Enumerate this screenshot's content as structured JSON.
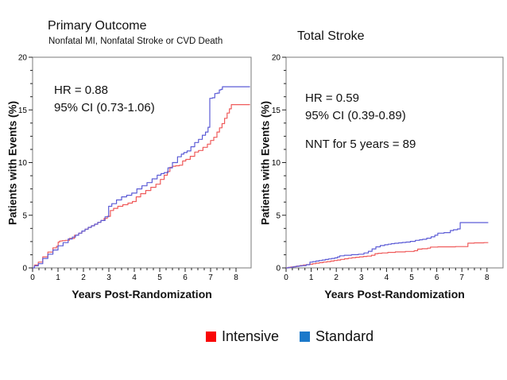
{
  "slide": {
    "background": "#ffffff"
  },
  "legend": {
    "items": [
      {
        "label": "Intensive",
        "color": "#f90606"
      },
      {
        "label": "Standard",
        "color": "#1c79ca"
      }
    ]
  },
  "chart_data": [
    {
      "type": "line",
      "title": "Primary Outcome",
      "subtitle": "Nonfatal MI, Nonfatal Stroke or CVD Death",
      "annotations": {
        "hr": "HR = 0.88",
        "ci": "95% CI (0.73-1.06)"
      },
      "xlabel": "Years Post-Randomization",
      "ylabel": "Patients with Events (%)",
      "xlim": [
        0,
        8
      ],
      "ylim": [
        0,
        20
      ],
      "xticks": [
        0,
        1,
        2,
        3,
        4,
        5,
        6,
        7,
        8
      ],
      "yticks": [
        0,
        5,
        10,
        15,
        20
      ],
      "grid": false,
      "legend_position": "bottom",
      "series": [
        {
          "name": "Intensive",
          "color": "#ef5a5a",
          "points": [
            [
              0,
              0
            ],
            [
              0.3,
              0.55
            ],
            [
              0.5,
              1.05
            ],
            [
              0.7,
              1.5
            ],
            [
              0.9,
              1.9
            ],
            [
              0.98,
              2.05
            ],
            [
              1.03,
              2.45
            ],
            [
              1.1,
              2.55
            ],
            [
              1.35,
              2.62
            ],
            [
              1.55,
              2.8
            ],
            [
              1.75,
              3.1
            ],
            [
              2,
              3.5
            ],
            [
              2.25,
              3.85
            ],
            [
              2.5,
              4.15
            ],
            [
              2.75,
              4.5
            ],
            [
              3,
              4.9
            ],
            [
              3.12,
              5.45
            ],
            [
              3.25,
              5.65
            ],
            [
              3.45,
              5.85
            ],
            [
              3.65,
              6.0
            ],
            [
              3.85,
              6.15
            ],
            [
              4,
              6.3
            ],
            [
              4.15,
              6.75
            ],
            [
              4.35,
              7.05
            ],
            [
              4.55,
              7.35
            ],
            [
              4.75,
              7.65
            ],
            [
              4.95,
              7.95
            ],
            [
              5.1,
              8.4
            ],
            [
              5.25,
              8.8
            ],
            [
              5.35,
              9.15
            ],
            [
              5.45,
              9.55
            ],
            [
              5.55,
              9.65
            ],
            [
              5.85,
              9.75
            ],
            [
              5.95,
              10.15
            ],
            [
              6.1,
              10.3
            ],
            [
              6.3,
              10.6
            ],
            [
              6.45,
              11.0
            ],
            [
              6.6,
              11.15
            ],
            [
              6.8,
              11.45
            ],
            [
              6.95,
              11.75
            ],
            [
              7.05,
              12.1
            ],
            [
              7.2,
              12.4
            ],
            [
              7.3,
              12.9
            ],
            [
              7.4,
              13.3
            ],
            [
              7.5,
              13.7
            ],
            [
              7.6,
              14.2
            ],
            [
              7.7,
              14.7
            ],
            [
              7.78,
              15.1
            ],
            [
              7.85,
              15.5
            ],
            [
              8.55,
              15.5
            ]
          ]
        },
        {
          "name": "Standard",
          "color": "#5c5cd6",
          "points": [
            [
              0,
              0
            ],
            [
              0.3,
              0.4
            ],
            [
              0.5,
              0.9
            ],
            [
              0.7,
              1.3
            ],
            [
              0.9,
              1.7
            ],
            [
              1.1,
              2.1
            ],
            [
              1.3,
              2.4
            ],
            [
              1.5,
              2.75
            ],
            [
              1.75,
              3.1
            ],
            [
              2,
              3.5
            ],
            [
              2.25,
              3.85
            ],
            [
              2.5,
              4.15
            ],
            [
              2.75,
              4.5
            ],
            [
              2.95,
              4.85
            ],
            [
              3.03,
              5.85
            ],
            [
              3.2,
              6.1
            ],
            [
              3.4,
              6.45
            ],
            [
              3.6,
              6.75
            ],
            [
              3.8,
              6.9
            ],
            [
              4,
              7.1
            ],
            [
              4.2,
              7.5
            ],
            [
              4.4,
              7.8
            ],
            [
              4.6,
              8.1
            ],
            [
              4.8,
              8.45
            ],
            [
              5,
              8.8
            ],
            [
              5.1,
              8.95
            ],
            [
              5.25,
              9.05
            ],
            [
              5.4,
              9.5
            ],
            [
              5.6,
              10.0
            ],
            [
              5.8,
              10.55
            ],
            [
              5.9,
              10.8
            ],
            [
              6,
              10.95
            ],
            [
              6.15,
              11.1
            ],
            [
              6.3,
              11.5
            ],
            [
              6.45,
              11.9
            ],
            [
              6.6,
              12.2
            ],
            [
              6.75,
              12.6
            ],
            [
              6.85,
              12.9
            ],
            [
              6.95,
              13.35
            ],
            [
              6.99,
              16.1
            ],
            [
              7.15,
              16.15
            ],
            [
              7.18,
              16.55
            ],
            [
              7.33,
              16.6
            ],
            [
              7.36,
              16.9
            ],
            [
              7.45,
              16.95
            ],
            [
              7.48,
              17.2
            ],
            [
              8.55,
              17.2
            ]
          ]
        }
      ]
    },
    {
      "type": "line",
      "title": "Total Stroke",
      "subtitle": "",
      "annotations": {
        "hr": "HR = 0.59",
        "ci": "95% CI (0.39-0.89)",
        "nnt": "NNT for 5 years = 89"
      },
      "xlabel": "Years Post-Randomization",
      "ylabel": "Patients with Events (%)",
      "xlim": [
        0,
        8
      ],
      "ylim": [
        0,
        20
      ],
      "xticks": [
        0,
        1,
        2,
        3,
        4,
        5,
        6,
        7,
        8
      ],
      "yticks": [
        0,
        5,
        10,
        15,
        20
      ],
      "grid": false,
      "legend_position": "bottom",
      "series": [
        {
          "name": "Intensive",
          "color": "#ef5a5a",
          "points": [
            [
              0,
              0
            ],
            [
              0.25,
              0.08
            ],
            [
              0.5,
              0.18
            ],
            [
              0.75,
              0.27
            ],
            [
              1.0,
              0.35
            ],
            [
              1.25,
              0.45
            ],
            [
              1.55,
              0.55
            ],
            [
              1.85,
              0.65
            ],
            [
              2.1,
              0.75
            ],
            [
              2.4,
              0.87
            ],
            [
              2.7,
              0.97
            ],
            [
              3.0,
              1.05
            ],
            [
              3.3,
              1.12
            ],
            [
              3.5,
              1.2
            ],
            [
              3.58,
              1.35
            ],
            [
              3.9,
              1.42
            ],
            [
              4.2,
              1.47
            ],
            [
              4.5,
              1.52
            ],
            [
              5.0,
              1.56
            ],
            [
              5.2,
              1.63
            ],
            [
              5.28,
              1.78
            ],
            [
              5.55,
              1.82
            ],
            [
              5.72,
              1.87
            ],
            [
              5.78,
              1.98
            ],
            [
              6.3,
              2.0
            ],
            [
              7.2,
              2.02
            ],
            [
              7.28,
              2.35
            ],
            [
              7.7,
              2.38
            ],
            [
              8.05,
              2.4
            ]
          ]
        },
        {
          "name": "Standard",
          "color": "#5c5cd6",
          "points": [
            [
              0,
              0
            ],
            [
              0.2,
              0.05
            ],
            [
              0.45,
              0.15
            ],
            [
              0.7,
              0.22
            ],
            [
              0.9,
              0.3
            ],
            [
              1.0,
              0.55
            ],
            [
              1.25,
              0.65
            ],
            [
              1.5,
              0.75
            ],
            [
              1.75,
              0.85
            ],
            [
              2.0,
              0.95
            ],
            [
              2.1,
              1.05
            ],
            [
              2.18,
              1.15
            ],
            [
              2.45,
              1.2
            ],
            [
              2.75,
              1.25
            ],
            [
              3.0,
              1.3
            ],
            [
              3.2,
              1.42
            ],
            [
              3.35,
              1.58
            ],
            [
              3.5,
              1.8
            ],
            [
              3.65,
              2.0
            ],
            [
              3.85,
              2.12
            ],
            [
              4.0,
              2.2
            ],
            [
              4.25,
              2.3
            ],
            [
              4.55,
              2.38
            ],
            [
              4.85,
              2.45
            ],
            [
              5.05,
              2.52
            ],
            [
              5.25,
              2.62
            ],
            [
              5.5,
              2.72
            ],
            [
              5.7,
              2.82
            ],
            [
              5.85,
              2.95
            ],
            [
              6.0,
              3.1
            ],
            [
              6.08,
              3.3
            ],
            [
              6.5,
              3.35
            ],
            [
              6.58,
              3.55
            ],
            [
              6.75,
              3.62
            ],
            [
              6.9,
              3.7
            ],
            [
              6.97,
              4.3
            ],
            [
              8.05,
              4.3
            ]
          ]
        }
      ]
    }
  ]
}
